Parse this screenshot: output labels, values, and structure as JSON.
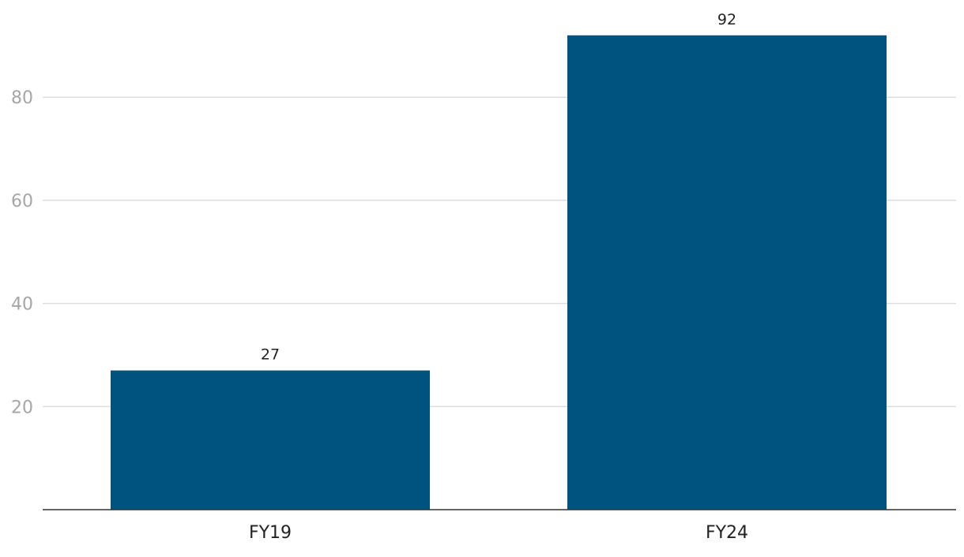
{
  "chart_data": {
    "type": "bar",
    "title": "",
    "xlabel": "",
    "ylabel": "",
    "categories": [
      "FY19",
      "FY24"
    ],
    "values": [
      27,
      92
    ],
    "data_labels": [
      "27",
      "92"
    ],
    "ylim": [
      0,
      95
    ],
    "yticks": [
      20,
      40,
      60,
      80
    ],
    "ytick_labels": [
      "20",
      "40",
      "60",
      "80"
    ],
    "grid": true,
    "legend": "none",
    "colors": {
      "bar": "#00537f",
      "grid": "#dedede",
      "baseline": "#333333",
      "ytick_text": "#a6a6a6",
      "xtick_text": "#222222",
      "label_text": "#222222"
    }
  }
}
